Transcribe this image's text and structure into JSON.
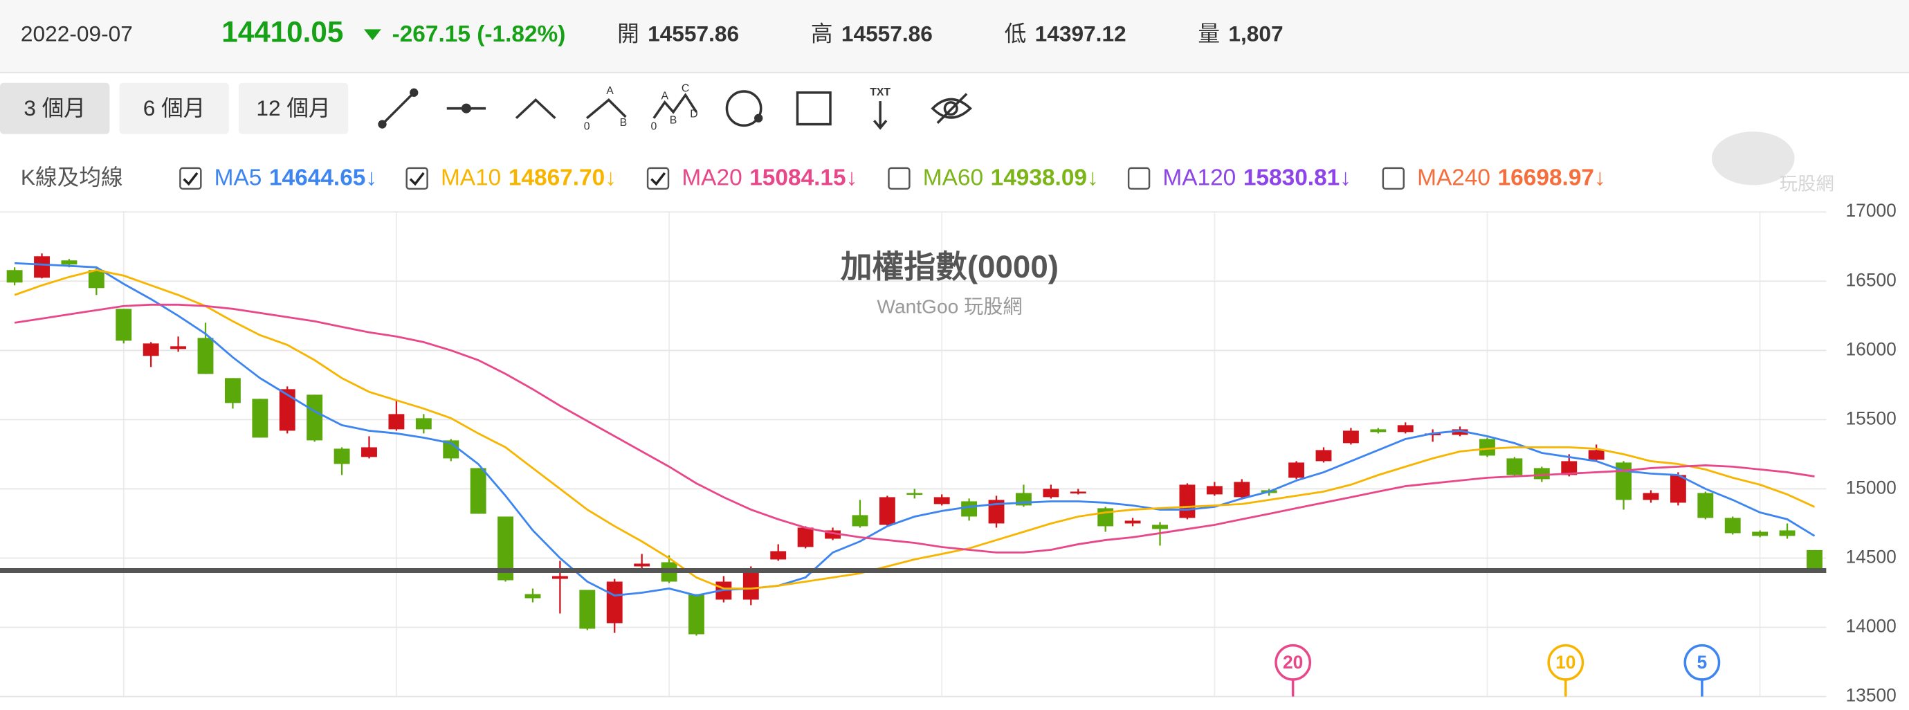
{
  "header": {
    "date": "2022-09-07",
    "price": "14410.05",
    "change": "-267.15 (-1.82%)",
    "stats": [
      {
        "label": "開",
        "value": "14557.86"
      },
      {
        "label": "高",
        "value": "14557.86"
      },
      {
        "label": "低",
        "value": "14397.12"
      },
      {
        "label": "量",
        "value": "1,807"
      }
    ]
  },
  "toolbar": {
    "ranges": [
      "3 個月",
      "6 個月",
      "12 個月"
    ],
    "selected_range": 0,
    "tool_labels": {
      "abc": [
        "A",
        "0",
        "B"
      ],
      "wave": [
        "C",
        "A",
        "B",
        "0",
        "D"
      ],
      "text": "TXT"
    }
  },
  "indicator_title": "K線及均線",
  "watermark": "玩股網",
  "chart_data": {
    "type": "candlestick",
    "title": "加權指數(0000)",
    "subtitle": "WantGoo 玩股網",
    "up_color": "#d0121b",
    "down_color": "#5aa80a",
    "open": [
      16580,
      16525,
      16650,
      16580,
      16300,
      15960,
      16010,
      16090,
      15800,
      15650,
      15420,
      15680,
      15290,
      15230,
      15430,
      15510,
      15350,
      15150,
      14800,
      14240,
      14350,
      14270,
      14030,
      14440,
      14470,
      14240,
      14200,
      14200,
      14490,
      14580,
      14640,
      14810,
      14740,
      14970,
      14890,
      14910,
      14750,
      14970,
      14940,
      14980,
      14860,
      14750,
      14740,
      14790,
      14960,
      14940,
      14990,
      15080,
      15200,
      15330,
      15430,
      15410,
      15390,
      15390,
      15360,
      15220,
      15150,
      15100,
      15210,
      15190,
      14920,
      14900,
      14970,
      14790,
      14690,
      14700,
      14557.86
    ],
    "high": [
      16600,
      16700,
      16660,
      16600,
      16300,
      16060,
      16100,
      16200,
      15800,
      15650,
      15740,
      15680,
      15300,
      15380,
      15640,
      15540,
      15360,
      15150,
      14800,
      14280,
      14480,
      14270,
      14350,
      14530,
      14520,
      14240,
      14370,
      14440,
      14600,
      14730,
      14720,
      14920,
      14950,
      15000,
      14960,
      14930,
      14950,
      15030,
      15030,
      15000,
      14870,
      14790,
      14760,
      15040,
      15050,
      15070,
      15000,
      15200,
      15300,
      15440,
      15440,
      15480,
      15430,
      15450,
      15370,
      15230,
      15160,
      15250,
      15320,
      15200,
      14990,
      15120,
      14980,
      14800,
      14700,
      14750,
      14557.86
    ],
    "low": [
      16470,
      16520,
      16600,
      16400,
      16050,
      15880,
      15990,
      15830,
      15580,
      15370,
      15400,
      15340,
      15100,
      15220,
      15420,
      15400,
      15200,
      14820,
      14330,
      14180,
      14100,
      13980,
      13960,
      14400,
      14320,
      13940,
      14180,
      14160,
      14480,
      14570,
      14630,
      14720,
      14730,
      14930,
      14880,
      14770,
      14720,
      14870,
      14930,
      14960,
      14690,
      14730,
      14590,
      14780,
      14950,
      14930,
      14950,
      15070,
      15190,
      15320,
      15400,
      15400,
      15340,
      15380,
      15230,
      15090,
      15050,
      15090,
      15200,
      14850,
      14900,
      14880,
      14780,
      14670,
      14650,
      14640,
      14397.12
    ],
    "close": [
      16490,
      16680,
      16620,
      16450,
      16070,
      16050,
      16030,
      15830,
      15620,
      15370,
      15720,
      15350,
      15180,
      15300,
      15540,
      15430,
      15220,
      14820,
      14340,
      14210,
      14370,
      13990,
      14330,
      14460,
      14330,
      13950,
      14330,
      14420,
      14550,
      14720,
      14700,
      14730,
      14940,
      14960,
      14940,
      14800,
      14920,
      14880,
      15000,
      14980,
      14730,
      14770,
      14710,
      15030,
      15020,
      15050,
      14970,
      15190,
      15280,
      15420,
      15410,
      15460,
      15400,
      15430,
      15240,
      15100,
      15070,
      15200,
      15280,
      14920,
      14970,
      15100,
      14790,
      14680,
      14660,
      14660,
      14410.05
    ],
    "series": [
      {
        "name": "MA5",
        "color": "#3d85f0",
        "latest": "14644.65",
        "trend": "↓",
        "checked": true,
        "values": [
          16630,
          16620,
          16610,
          16600,
          16480,
          16370,
          16250,
          16120,
          15950,
          15800,
          15680,
          15560,
          15460,
          15420,
          15400,
          15370,
          15330,
          15180,
          14950,
          14700,
          14500,
          14330,
          14230,
          14250,
          14280,
          14230,
          14270,
          14280,
          14300,
          14360,
          14540,
          14620,
          14730,
          14800,
          14840,
          14870,
          14890,
          14900,
          14910,
          14910,
          14900,
          14880,
          14850,
          14850,
          14870,
          14930,
          14980,
          15060,
          15120,
          15200,
          15280,
          15360,
          15400,
          15420,
          15380,
          15330,
          15260,
          15230,
          15200,
          15130,
          15110,
          15100,
          15000,
          14920,
          14830,
          14780,
          14660
        ]
      },
      {
        "name": "MA10",
        "color": "#f7b500",
        "latest": "14867.70",
        "trend": "↓",
        "checked": true,
        "values": [
          16400,
          16470,
          16530,
          16580,
          16540,
          16470,
          16400,
          16320,
          16210,
          16110,
          16040,
          15930,
          15800,
          15700,
          15640,
          15580,
          15510,
          15400,
          15300,
          15150,
          15000,
          14850,
          14730,
          14620,
          14500,
          14360,
          14280,
          14280,
          14300,
          14330,
          14360,
          14390,
          14440,
          14490,
          14530,
          14570,
          14630,
          14690,
          14750,
          14800,
          14830,
          14850,
          14860,
          14870,
          14880,
          14890,
          14920,
          14950,
          14980,
          15030,
          15100,
          15160,
          15220,
          15270,
          15290,
          15300,
          15300,
          15300,
          15290,
          15250,
          15200,
          15180,
          15140,
          15080,
          15030,
          14960,
          14870
        ]
      },
      {
        "name": "MA20",
        "color": "#e8488a",
        "latest": "15084.15",
        "trend": "↓",
        "checked": true,
        "values": [
          16200,
          16230,
          16260,
          16290,
          16320,
          16330,
          16330,
          16320,
          16300,
          16270,
          16240,
          16210,
          16170,
          16130,
          16100,
          16060,
          16000,
          15930,
          15830,
          15720,
          15600,
          15490,
          15380,
          15270,
          15160,
          15040,
          14940,
          14850,
          14780,
          14720,
          14680,
          14650,
          14630,
          14610,
          14580,
          14560,
          14540,
          14540,
          14560,
          14600,
          14630,
          14650,
          14680,
          14710,
          14740,
          14780,
          14820,
          14860,
          14900,
          14940,
          14980,
          15020,
          15040,
          15060,
          15080,
          15090,
          15100,
          15110,
          15120,
          15130,
          15150,
          15160,
          15170,
          15160,
          15140,
          15120,
          15090
        ]
      },
      {
        "name": "MA60",
        "color": "#7cb518",
        "latest": "14938.09",
        "trend": "↓",
        "checked": false
      },
      {
        "name": "MA120",
        "color": "#8e44e8",
        "latest": "15830.81",
        "trend": "↓",
        "checked": false
      },
      {
        "name": "MA240",
        "color": "#f56e3b",
        "latest": "16698.97",
        "trend": "↓",
        "checked": false
      }
    ],
    "markers": [
      {
        "label": "20",
        "color": "#e8488a"
      },
      {
        "label": "10",
        "color": "#f7b500"
      },
      {
        "label": "5",
        "color": "#3d85f0"
      }
    ],
    "ylim": [
      13500,
      17000
    ],
    "yticks": [
      13500,
      14000,
      14500,
      15000,
      15500,
      16000,
      16500,
      17000
    ],
    "grid": true,
    "price_line_color": "#555555"
  }
}
